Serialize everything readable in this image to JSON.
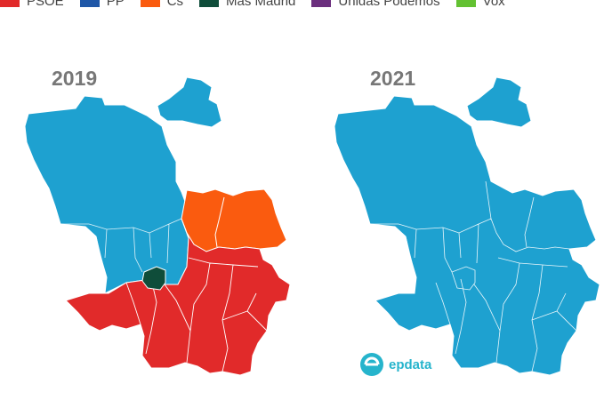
{
  "legend": {
    "items": [
      {
        "label": "PSOE",
        "color": "#e12a2a"
      },
      {
        "label": "PP",
        "color": "#1f57a7"
      },
      {
        "label": "Cs",
        "color": "#fa5b0f"
      },
      {
        "label": "Más Madrid",
        "color": "#0f4d3a"
      },
      {
        "label": "Unidas Podemos",
        "color": "#6b2f7e"
      },
      {
        "label": "Vox",
        "color": "#63c132"
      }
    ]
  },
  "maps": {
    "left_title": "2019",
    "right_title": "2021",
    "colors": {
      "pp_light": "#1ea1d0",
      "psoe": "#e12a2a",
      "cs": "#fa5b0f",
      "mas_madrid": "#0f4d3a",
      "border": "#ffffff"
    }
  },
  "logo": {
    "text": "epdata",
    "icon": "epdata-logo-icon",
    "color": "#26b4cc"
  }
}
